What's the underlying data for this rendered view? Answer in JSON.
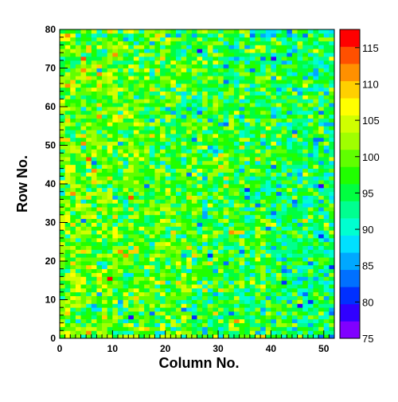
{
  "chart_data": {
    "type": "heatmap",
    "title": "",
    "xlabel": "Column No.",
    "ylabel": "Row No.",
    "xlim": [
      0,
      52
    ],
    "ylim": [
      0,
      80
    ],
    "n_columns": 52,
    "n_rows": 80,
    "x_ticks": [
      0,
      10,
      20,
      30,
      40,
      50
    ],
    "y_ticks": [
      0,
      10,
      20,
      30,
      40,
      50,
      60,
      70,
      80
    ],
    "colorbar": {
      "min": 75,
      "max": 117.5,
      "ticks": [
        75,
        80,
        85,
        90,
        95,
        100,
        105,
        110,
        115
      ],
      "colors": [
        "#8000ff",
        "#3000ff",
        "#0030ff",
        "#0070ff",
        "#00a8ff",
        "#00e0ff",
        "#00ffd0",
        "#00ff90",
        "#00ff40",
        "#20ff00",
        "#60ff00",
        "#a0ff00",
        "#d0ff00",
        "#ffff00",
        "#ffd000",
        "#ff9000",
        "#ff5000",
        "#ff0000"
      ]
    },
    "values_description_free": true,
    "value_model": {
      "mean_left": 100,
      "mean_right": 94,
      "noise": 5,
      "seed": 12345
    }
  }
}
